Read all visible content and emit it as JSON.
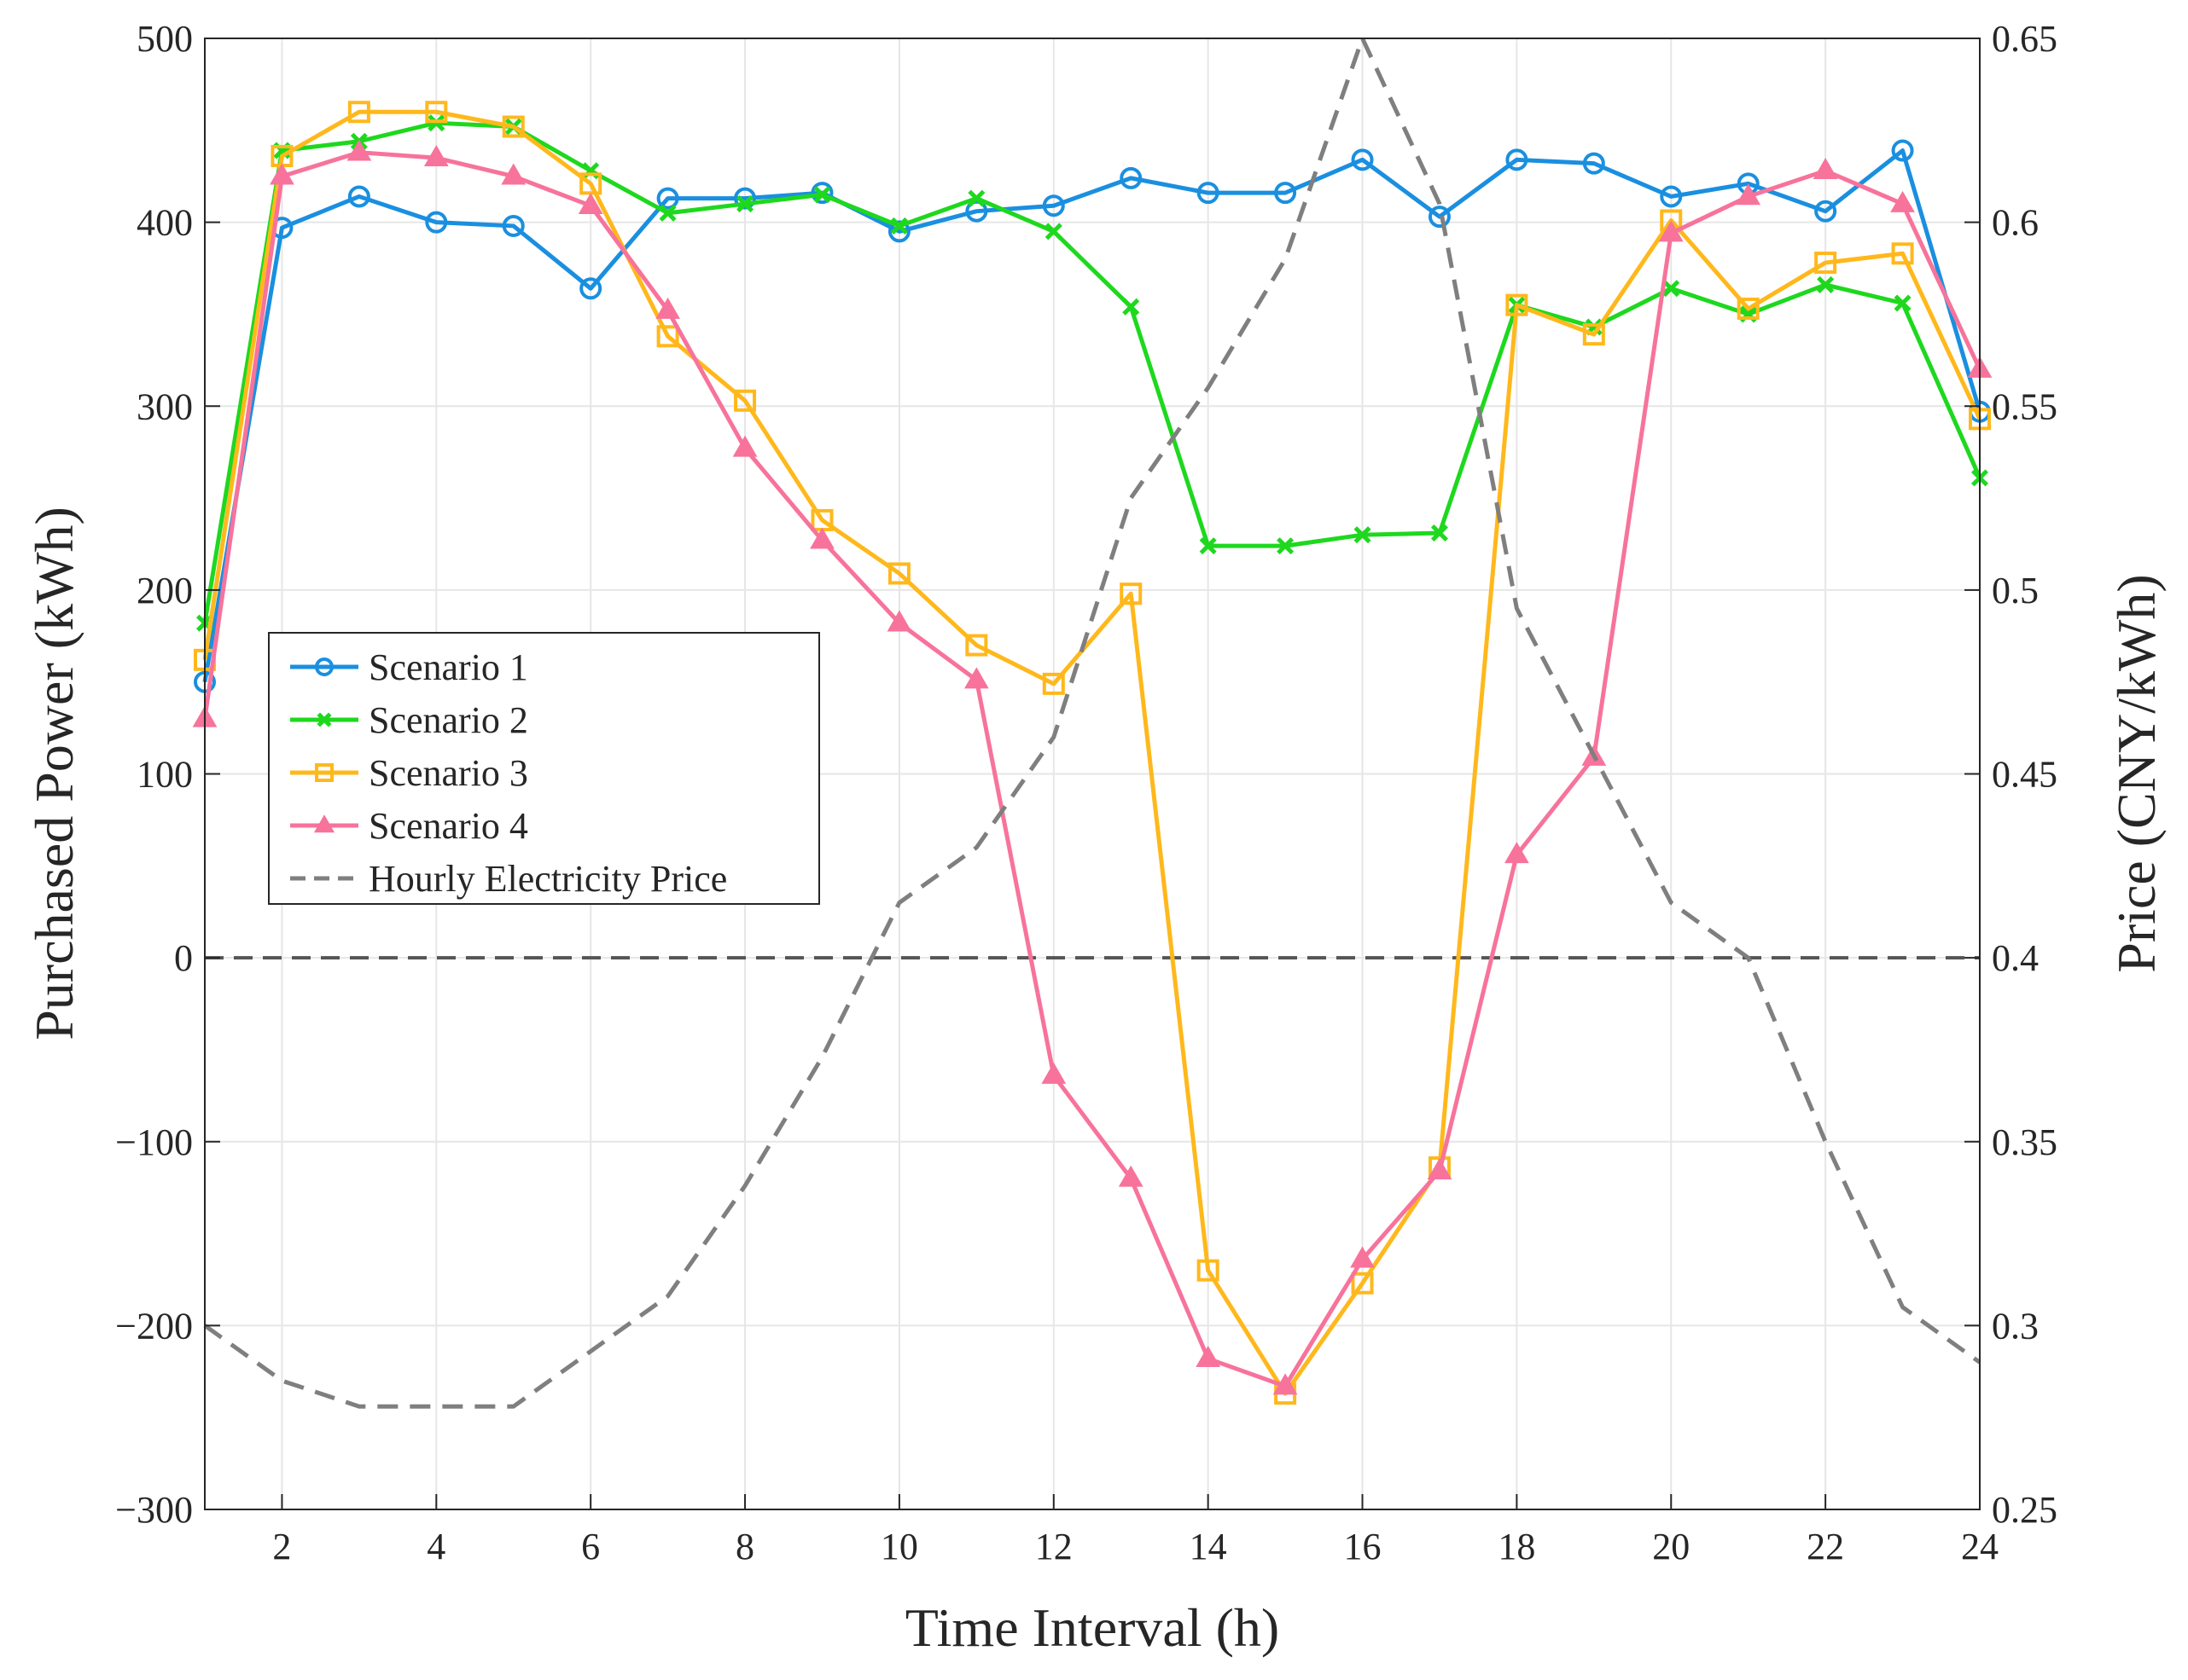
{
  "chart_data": {
    "type": "line",
    "xlabel": "Time Interval (h)",
    "ylabel_left": "Purchased Power (kWh)",
    "ylabel_right": "Price (CNY/kWh)",
    "xlim": [
      1,
      24
    ],
    "ylim_left": [
      -300,
      500
    ],
    "ylim_right": [
      0.25,
      0.65
    ],
    "x_ticks": [
      2,
      4,
      6,
      8,
      10,
      12,
      14,
      16,
      18,
      20,
      22,
      24
    ],
    "y_ticks_left": [
      -300,
      -200,
      -100,
      0,
      100,
      200,
      300,
      400,
      500
    ],
    "y_tick_labels_left": [
      "−300",
      "−200",
      "−100",
      "0",
      "100",
      "200",
      "300",
      "400",
      "500"
    ],
    "y_ticks_right": [
      0.25,
      0.3,
      0.35,
      0.4,
      0.45,
      0.5,
      0.55,
      0.6,
      0.65
    ],
    "y_tick_labels_right": [
      "0.25",
      "0.3",
      "0.35",
      "0.4",
      "0.45",
      "0.5",
      "0.55",
      "0.6",
      "0.65"
    ],
    "grid": true,
    "zero_line": 0,
    "legend_position": "middle-left",
    "x": [
      1,
      2,
      3,
      4,
      5,
      6,
      7,
      8,
      9,
      10,
      11,
      12,
      13,
      14,
      15,
      16,
      17,
      18,
      19,
      20,
      21,
      22,
      23,
      24
    ],
    "series": [
      {
        "name": "Scenario 1",
        "axis": "left",
        "color": "#1a8fe0",
        "marker": "circle",
        "dashed": false,
        "values": [
          150,
          397,
          414,
          400,
          398,
          364,
          413,
          413,
          416,
          395,
          406,
          409,
          424,
          416,
          416,
          434,
          403,
          434,
          432,
          414,
          421,
          406,
          439,
          297
        ]
      },
      {
        "name": "Scenario 2",
        "axis": "left",
        "color": "#1ed81e",
        "marker": "x",
        "dashed": false,
        "values": [
          182,
          439,
          444,
          454,
          452,
          428,
          405,
          410,
          415,
          398,
          413,
          395,
          354,
          224,
          224,
          230,
          231,
          355,
          343,
          364,
          350,
          366,
          356,
          261
        ]
      },
      {
        "name": "Scenario 3",
        "axis": "left",
        "color": "#ffb81c",
        "marker": "square",
        "dashed": false,
        "values": [
          162,
          436,
          460,
          460,
          452,
          421,
          338,
          303,
          238,
          209,
          170,
          149,
          198,
          -170,
          -237,
          -177,
          -114,
          355,
          339,
          401,
          353,
          378,
          383,
          293
        ]
      },
      {
        "name": "Scenario 4",
        "axis": "left",
        "color": "#f7739b",
        "marker": "triangle",
        "dashed": false,
        "values": [
          130,
          425,
          438,
          435,
          425,
          409,
          352,
          277,
          227,
          182,
          151,
          -64,
          -120,
          -218,
          -233,
          -164,
          -116,
          56,
          109,
          394,
          414,
          428,
          410,
          320
        ]
      },
      {
        "name": "Hourly Electricity Price",
        "axis": "right",
        "color": "#7f7f7f",
        "marker": "none",
        "dashed": true,
        "values": [
          0.3,
          0.285,
          0.278,
          0.278,
          0.278,
          0.293,
          0.308,
          0.338,
          0.373,
          0.415,
          0.43,
          0.46,
          0.525,
          0.555,
          0.59,
          0.65,
          0.605,
          0.495,
          0.455,
          0.415,
          0.4,
          0.35,
          0.305,
          0.29
        ]
      }
    ]
  }
}
